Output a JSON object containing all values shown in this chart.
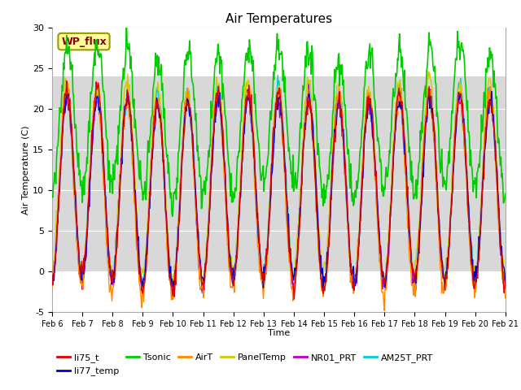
{
  "title": "Air Temperatures",
  "xlabel": "Time",
  "ylabel": "Air Temperature (C)",
  "ylim": [
    -5,
    30
  ],
  "xlim": [
    0,
    15
  ],
  "xtick_labels": [
    "Feb 6",
    "Feb 7",
    "Feb 8",
    "Feb 9",
    "Feb 10",
    "Feb 11",
    "Feb 12",
    "Feb 13",
    "Feb 14",
    "Feb 15",
    "Feb 16",
    "Feb 17",
    "Feb 18",
    "Feb 19",
    "Feb 20",
    "Feb 21"
  ],
  "annotation_text": "WP_flux",
  "annotation_color": "#8B0000",
  "annotation_bg": "#FFFF99",
  "annotation_edge": "#999900",
  "shaded_band_lo": 0,
  "shaded_band_hi": 24,
  "shaded_color": "#D8D8D8",
  "series_colors": {
    "li75_t": "#DD0000",
    "li77_temp": "#0000CC",
    "Tsonic": "#00CC00",
    "AirT": "#FF8800",
    "PanelTemp": "#CCCC00",
    "NR01_PRT": "#BB00BB",
    "AM25T_PRT": "#00CCCC"
  },
  "legend_entries": [
    "li75_t",
    "li77_temp",
    "Tsonic",
    "AirT",
    "PanelTemp",
    "NR01_PRT",
    "AM25T_PRT"
  ],
  "background_color": "#FFFFFF",
  "axes_bg": "#FFFFFF",
  "figsize": [
    6.4,
    4.8
  ],
  "dpi": 100
}
